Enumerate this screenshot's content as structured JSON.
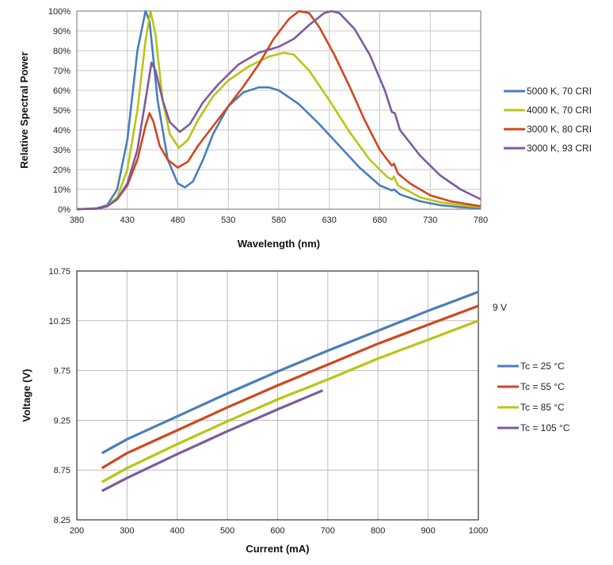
{
  "chart_data": [
    {
      "type": "line",
      "xlabel": "Wavelength (nm)",
      "ylabel": "Relative Spectral Power",
      "xlim": [
        380,
        780
      ],
      "ylim": [
        0,
        100
      ],
      "xticks": [
        "380",
        "430",
        "480",
        "530",
        "580",
        "630",
        "680",
        "730",
        "780"
      ],
      "yticks": [
        "0%",
        "10%",
        "20%",
        "30%",
        "40%",
        "50%",
        "60%",
        "70%",
        "80%",
        "90%",
        "100%"
      ],
      "grid": true,
      "legend": "right",
      "series": [
        {
          "name": "5000 K, 70 CRI",
          "color": "#4a7ebb",
          "x": [
            380,
            400,
            410,
            420,
            430,
            440,
            448,
            452,
            460,
            470,
            480,
            487,
            495,
            505,
            515,
            530,
            545,
            560,
            570,
            580,
            600,
            620,
            640,
            660,
            680,
            692,
            694,
            700,
            720,
            740,
            760,
            780
          ],
          "y": [
            0,
            0.5,
            2,
            10,
            35,
            80,
            100,
            95,
            55,
            25,
            13,
            11,
            14,
            25,
            38,
            52,
            59,
            61.5,
            61.5,
            60,
            53,
            43,
            32,
            21,
            12,
            9.5,
            10,
            7.5,
            4,
            2,
            1,
            0.5
          ]
        },
        {
          "name": "4000 K, 70 CRI",
          "color": "#b8c514",
          "x": [
            380,
            400,
            410,
            420,
            430,
            440,
            448,
            453,
            458,
            465,
            472,
            481,
            490,
            500,
            515,
            530,
            550,
            570,
            585,
            595,
            610,
            630,
            650,
            670,
            688,
            692,
            694,
            698,
            720,
            740,
            760,
            780
          ],
          "y": [
            0,
            0.3,
            1.5,
            6,
            20,
            50,
            85,
            100,
            88,
            55,
            38,
            31,
            35,
            45,
            57,
            65,
            72,
            77,
            79,
            78,
            70,
            55,
            39,
            25,
            16,
            15,
            16.5,
            12,
            6,
            3.5,
            2,
            1
          ]
        },
        {
          "name": "3000 K, 80 CRI",
          "color": "#d0471f",
          "x": [
            380,
            400,
            410,
            420,
            430,
            440,
            448,
            452,
            456,
            462,
            470,
            480,
            490,
            500,
            515,
            530,
            545,
            560,
            575,
            590,
            600,
            610,
            620,
            635,
            650,
            665,
            680,
            692,
            694,
            698,
            710,
            730,
            750,
            780
          ],
          "y": [
            0,
            0.3,
            1.5,
            5,
            12,
            25,
            42,
            48.5,
            44,
            32,
            25,
            21,
            24,
            32,
            42,
            52,
            62,
            73,
            86,
            96,
            100,
            99,
            92,
            78,
            62,
            45,
            30,
            22,
            23,
            18,
            13,
            7,
            4,
            1.5
          ]
        },
        {
          "name": "3000 K, 93 CRI",
          "color": "#7e5a9b",
          "x": [
            380,
            400,
            410,
            420,
            430,
            440,
            448,
            454,
            458,
            465,
            472,
            482,
            492,
            505,
            520,
            540,
            560,
            580,
            595,
            610,
            625,
            632,
            640,
            655,
            670,
            685,
            692,
            695,
            700,
            720,
            740,
            760,
            780
          ],
          "y": [
            0,
            0.3,
            1.5,
            5,
            13,
            30,
            55,
            74,
            70,
            55,
            44,
            39,
            43,
            54,
            63,
            73,
            79,
            82,
            86,
            93,
            99,
            100,
            99,
            91,
            78,
            60,
            49,
            48.5,
            40,
            27,
            17,
            10,
            5
          ]
        }
      ]
    },
    {
      "type": "line",
      "xlabel": "Current (mA)",
      "ylabel": "Voltage (V)",
      "xlim": [
        200,
        1000
      ],
      "ylim": [
        8.25,
        10.75
      ],
      "xticks": [
        "200",
        "300",
        "400",
        "500",
        "600",
        "700",
        "800",
        "900",
        "1000"
      ],
      "yticks": [
        "8.25",
        "8.75",
        "9.25",
        "9.75",
        "10.25",
        "10.75"
      ],
      "grid": true,
      "legend": "right",
      "annotation": "9 V",
      "series": [
        {
          "name": "Tc = 25 °C",
          "color": "#4a7ebb",
          "x": [
            250,
            300,
            400,
            500,
            600,
            700,
            800,
            900,
            1000
          ],
          "y": [
            8.92,
            9.06,
            9.29,
            9.52,
            9.74,
            9.95,
            10.15,
            10.35,
            10.54
          ]
        },
        {
          "name": "Tc = 55 °C",
          "color": "#d0471f",
          "x": [
            250,
            300,
            400,
            500,
            600,
            700,
            800,
            900,
            1000
          ],
          "y": [
            8.77,
            8.92,
            9.15,
            9.38,
            9.6,
            9.81,
            10.02,
            10.21,
            10.4
          ]
        },
        {
          "name": "Tc = 85 °C",
          "color": "#b8c514",
          "x": [
            250,
            300,
            400,
            500,
            600,
            700,
            800,
            900,
            1000
          ],
          "y": [
            8.63,
            8.77,
            9.01,
            9.24,
            9.46,
            9.66,
            9.87,
            10.06,
            10.25
          ]
        },
        {
          "name": "Tc = 105 °C",
          "color": "#7e5a9b",
          "x": [
            250,
            300,
            400,
            500,
            600,
            690
          ],
          "y": [
            8.54,
            8.67,
            8.91,
            9.14,
            9.36,
            9.55
          ]
        }
      ]
    }
  ]
}
